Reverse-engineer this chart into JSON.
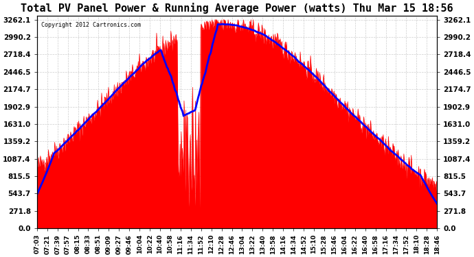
{
  "title": "Total PV Panel Power & Running Average Power (watts) Thu Mar 15 18:56",
  "copyright": "Copyright 2012 Cartronics.com",
  "background_color": "#ffffff",
  "plot_bg_color": "#ffffff",
  "grid_color": "#cccccc",
  "fill_color": "#ff0000",
  "line_color": "#0000ff",
  "y_ticks": [
    0.0,
    271.8,
    543.7,
    815.5,
    1087.4,
    1359.2,
    1631.0,
    1902.9,
    2174.7,
    2446.5,
    2718.4,
    2990.2,
    3262.1
  ],
  "x_labels": [
    "07:03",
    "07:21",
    "07:39",
    "07:57",
    "08:15",
    "08:33",
    "08:51",
    "09:09",
    "09:27",
    "09:46",
    "10:04",
    "10:22",
    "10:40",
    "10:58",
    "11:16",
    "11:34",
    "11:52",
    "12:10",
    "12:28",
    "12:46",
    "13:04",
    "13:22",
    "13:40",
    "13:58",
    "14:16",
    "14:34",
    "14:52",
    "15:10",
    "15:28",
    "15:46",
    "16:04",
    "16:22",
    "16:40",
    "16:58",
    "17:16",
    "17:34",
    "17:52",
    "18:10",
    "18:28",
    "18:46"
  ],
  "y_max": 3262.1,
  "y_min": 0.0
}
